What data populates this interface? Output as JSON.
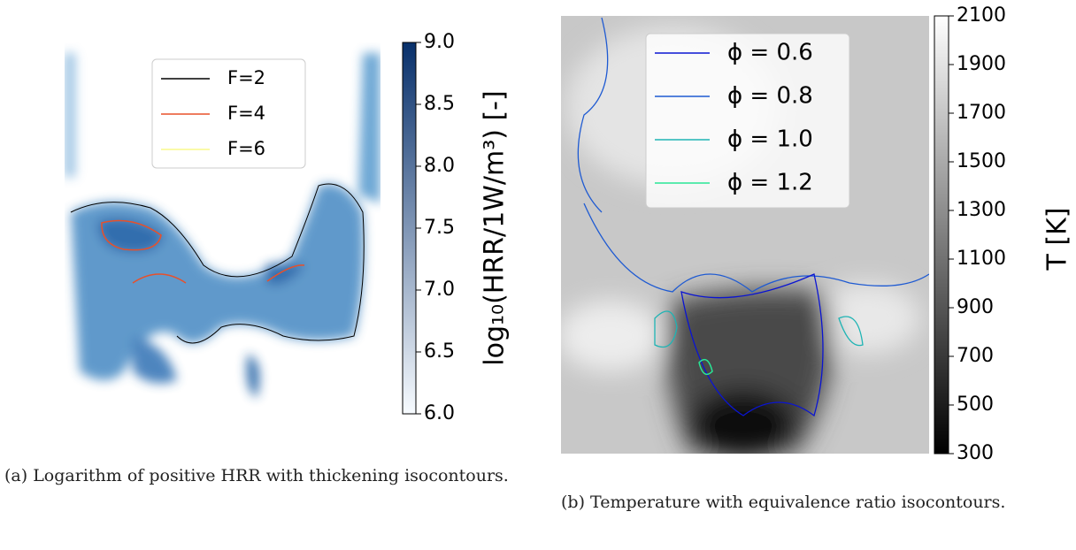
{
  "panels": [
    {
      "legend": [
        {
          "name": "F=2",
          "color": "#000000"
        },
        {
          "name": "F=4",
          "color": "#e8502a"
        },
        {
          "name": "F=6",
          "color": "#fafa8c"
        }
      ],
      "colorbar": {
        "label": "log₁₀(HRR/1W/m³) [-]",
        "lim": [
          6,
          9
        ],
        "colors": [
          "#f7fbff",
          "#08306b"
        ],
        "ticks": [
          {
            "value": 6,
            "label": "6.0"
          },
          {
            "value": 6.5,
            "label": "6.5"
          },
          {
            "value": 7,
            "label": "7.0"
          },
          {
            "value": 7.5,
            "label": "7.5"
          },
          {
            "value": 8,
            "label": "8.0"
          },
          {
            "value": 8.5,
            "label": "8.5"
          },
          {
            "value": 9,
            "label": "9.0"
          }
        ]
      },
      "caption": "(a) Logarithm of positive HRR with thickening isocontours."
    },
    {
      "legend": [
        {
          "name": "ϕ = 0.6",
          "color": "#0a14d2"
        },
        {
          "name": "ϕ = 0.8",
          "color": "#1e5ad2"
        },
        {
          "name": "ϕ = 1.0",
          "color": "#1eb4b4"
        },
        {
          "name": "ϕ = 1.2",
          "color": "#28e696"
        }
      ],
      "colorbar": {
        "label": "T [K]",
        "lim": [
          300,
          2100
        ],
        "colors": [
          "#000000",
          "#ffffff"
        ],
        "ticks": [
          300,
          500,
          700,
          900,
          1100,
          1300,
          1500,
          1700,
          1900,
          2100
        ]
      },
      "caption": "(b) Temperature with equivalence ratio isocontours."
    }
  ]
}
